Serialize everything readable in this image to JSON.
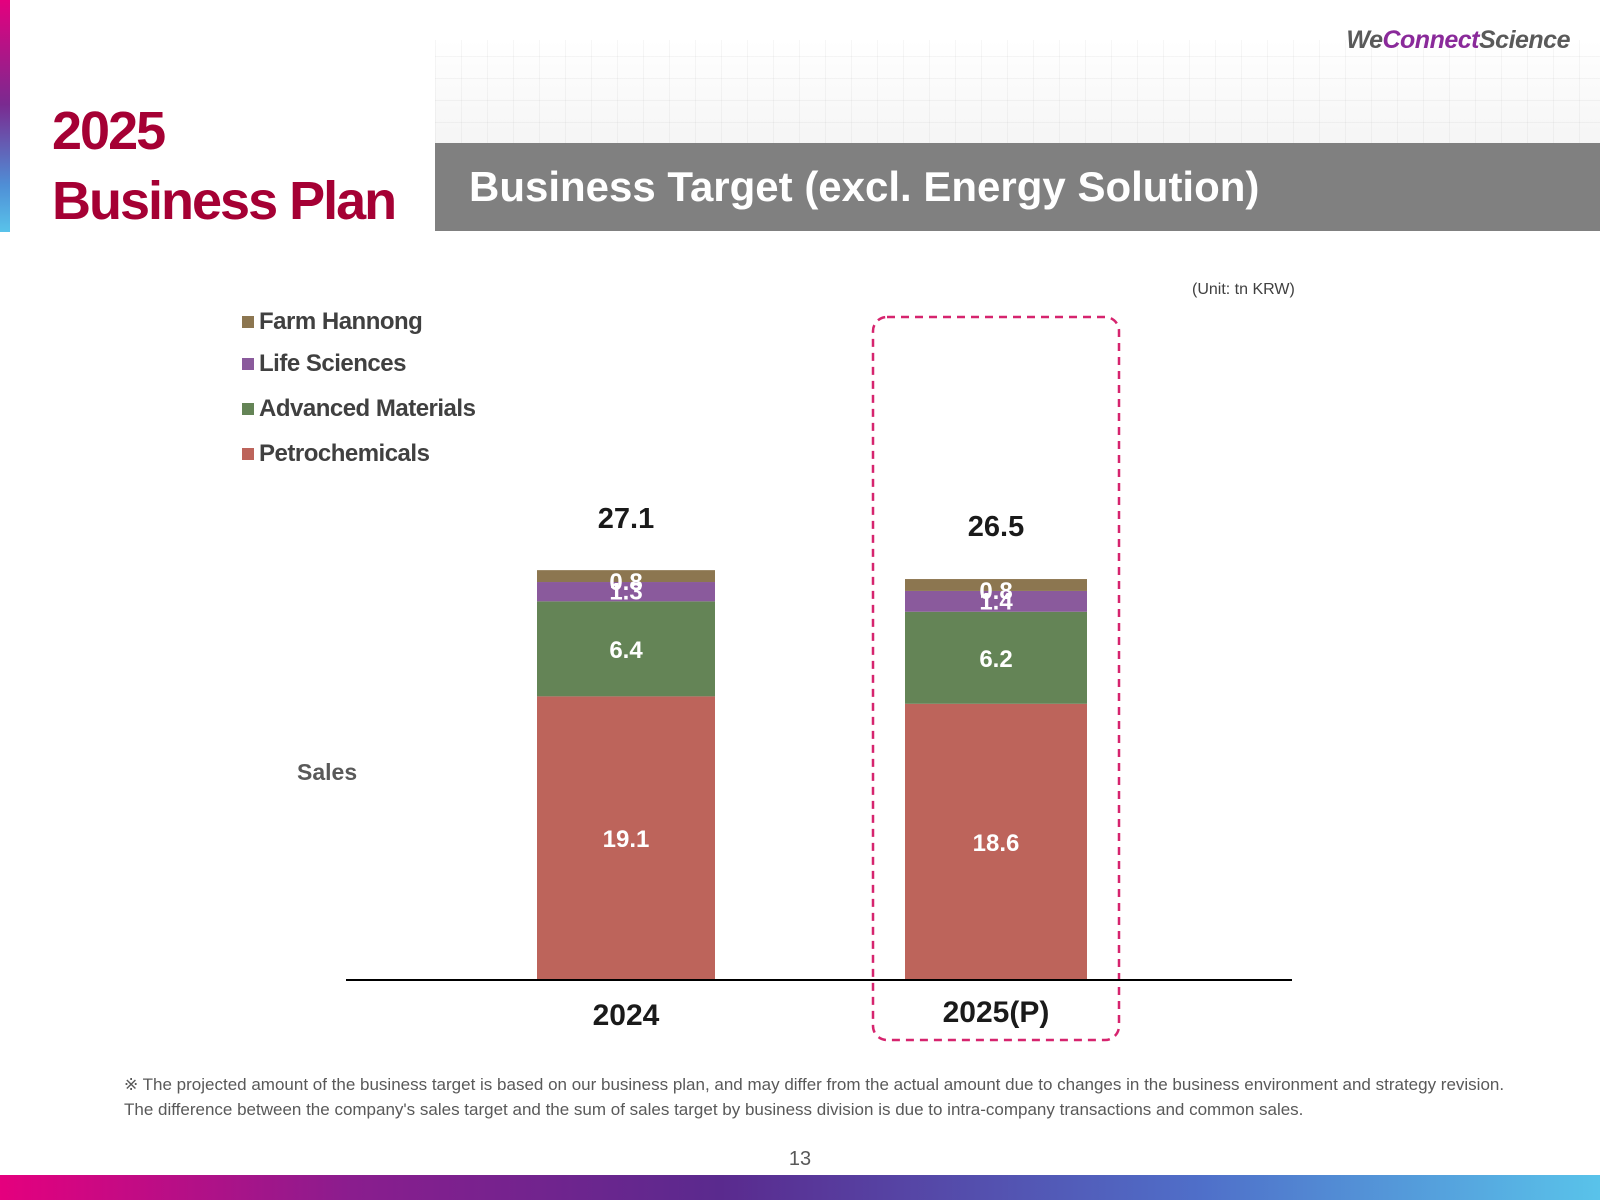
{
  "page": {
    "title_line1": "2025",
    "title_line2": "Business Plan",
    "logo": {
      "part1": "We",
      "part2": "Connect",
      "part3": "Science"
    },
    "section_title": "Business Target (excl. Energy Solution)",
    "unit": "(Unit: tn KRW)",
    "row_label": "Sales",
    "footnote_line1": "※ The projected amount of the business target is based on our business plan, and may differ from the actual amount due to changes in the business environment and strategy revision.",
    "footnote_line2": "The difference between the company's sales target and the sum of sales target by business division is due to intra-company transactions and common sales.",
    "page_number": "13"
  },
  "colors": {
    "accent": "#a50034",
    "highlight_border": "#d6246e",
    "title_bar": "#808080",
    "axis": "#000000"
  },
  "chart_data": {
    "type": "bar",
    "stacked": true,
    "categories": [
      "2024",
      "2025(P)"
    ],
    "totals": [
      "27.1",
      "26.5"
    ],
    "highlighted_category": "2025(P)",
    "series": [
      {
        "name": "Petrochemicals",
        "values": [
          19.1,
          18.6
        ],
        "color": "#bd645b"
      },
      {
        "name": "Advanced Materials",
        "values": [
          6.4,
          6.2
        ],
        "color": "#648456"
      },
      {
        "name": "Life Sciences",
        "values": [
          1.3,
          1.4
        ],
        "color": "#8a5a9c"
      },
      {
        "name": "Farm Hannong",
        "values": [
          0.8,
          0.8
        ],
        "color": "#8c7650"
      }
    ],
    "legend": [
      "Farm Hannong",
      "Life Sciences",
      "Advanced Materials",
      "Petrochemicals"
    ],
    "legend_position": "top-left",
    "ylim": [
      0,
      27.1
    ],
    "grid": false
  }
}
